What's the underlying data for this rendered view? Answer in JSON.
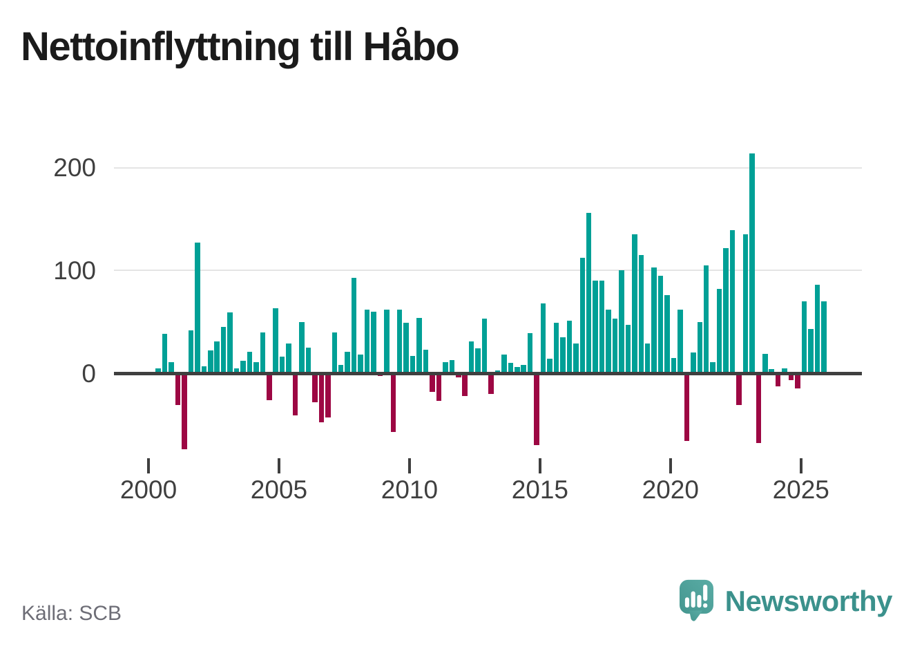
{
  "title": "Nettoinflyttning till Håbo",
  "source": "Källa: SCB",
  "brand": {
    "name": "Newsworthy",
    "logo_icon": "newsworthy-speech-bubble-bar-chart-icon",
    "text_color": "#3b918c",
    "bubble_color": "#4d9f99"
  },
  "colors": {
    "positive_bar": "#00a096",
    "negative_bar": "#9d0743",
    "zero_line": "#3f3f3f",
    "gridline": "#e4e4e4",
    "axis_text": "#3f3f3f",
    "title_text": "#1b1b1b",
    "source_text": "#6d6d76"
  },
  "chart_data": {
    "type": "bar",
    "title": "Nettoinflyttning till Håbo",
    "frequency": "quarterly",
    "legend": "none",
    "grid": "horizontal",
    "x_axis": {
      "tick_labels": [
        "2000",
        "2005",
        "2010",
        "2015",
        "2020",
        "2025"
      ],
      "tick_years": [
        2000,
        2005,
        2010,
        2015,
        2020,
        2025
      ]
    },
    "y_axis": {
      "ticks": [
        0,
        100,
        200
      ],
      "tick_labels": [
        "0",
        "100",
        "200"
      ],
      "range": [
        -80,
        225
      ]
    },
    "series": [
      {
        "name": "Nettoinflyttning",
        "start": "2000Q1",
        "data_by_year": [
          {
            "year": 2000,
            "quarters": [
              0,
              5,
              38,
              11
            ]
          },
          {
            "year": 2001,
            "quarters": [
              -31,
              -74,
              42,
              127
            ]
          },
          {
            "year": 2002,
            "quarters": [
              7,
              22,
              31,
              45
            ]
          },
          {
            "year": 2003,
            "quarters": [
              59,
              5,
              12,
              21
            ]
          },
          {
            "year": 2004,
            "quarters": [
              11,
              40,
              -26,
              63
            ]
          },
          {
            "year": 2005,
            "quarters": [
              16,
              29,
              -41,
              50
            ]
          },
          {
            "year": 2006,
            "quarters": [
              25,
              -28,
              -48,
              -43
            ]
          },
          {
            "year": 2007,
            "quarters": [
              40,
              8,
              21,
              93
            ]
          },
          {
            "year": 2008,
            "quarters": [
              18,
              62,
              60,
              -3
            ]
          },
          {
            "year": 2009,
            "quarters": [
              62,
              -57,
              62,
              49
            ]
          },
          {
            "year": 2010,
            "quarters": [
              17,
              54,
              23,
              -18
            ]
          },
          {
            "year": 2011,
            "quarters": [
              -27,
              11,
              13,
              -4
            ]
          },
          {
            "year": 2012,
            "quarters": [
              -22,
              31,
              24,
              53
            ]
          },
          {
            "year": 2013,
            "quarters": [
              -20,
              3,
              18,
              10
            ]
          },
          {
            "year": 2014,
            "quarters": [
              6,
              8,
              39,
              -70
            ]
          },
          {
            "year": 2015,
            "quarters": [
              68,
              14,
              49,
              35
            ]
          },
          {
            "year": 2016,
            "quarters": [
              51,
              29,
              112,
              156
            ]
          },
          {
            "year": 2017,
            "quarters": [
              90,
              90,
              62,
              53
            ]
          },
          {
            "year": 2018,
            "quarters": [
              100,
              47,
              135,
              115
            ]
          },
          {
            "year": 2019,
            "quarters": [
              29,
              103,
              95,
              76
            ]
          },
          {
            "year": 2020,
            "quarters": [
              15,
              62,
              -66,
              20
            ]
          },
          {
            "year": 2021,
            "quarters": [
              50,
              105,
              11,
              82
            ]
          },
          {
            "year": 2022,
            "quarters": [
              122,
              139,
              -31,
              135
            ]
          },
          {
            "year": 2023,
            "quarters": [
              214,
              -68,
              19,
              4
            ]
          },
          {
            "year": 2024,
            "quarters": [
              -13,
              5,
              -7,
              -15
            ]
          },
          {
            "year": 2025,
            "quarters": [
              70,
              43,
              86,
              70
            ]
          }
        ]
      }
    ]
  }
}
